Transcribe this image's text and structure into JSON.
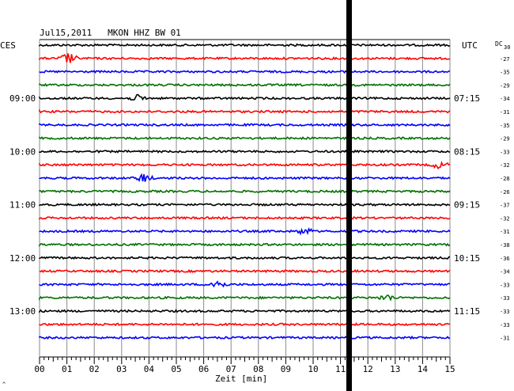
{
  "header": {
    "title": "Jul15,2011   MKON HHZ BW 01",
    "left_tz": "CES",
    "right_tz": "UTC",
    "dc_label_top": "DC",
    "dc_label_sub": "30"
  },
  "chart_data": {
    "type": "line",
    "title": "Jul15,2011   MKON HHZ BW 01",
    "xlabel": "Zeit [min]",
    "x_ticks": [
      "00",
      "01",
      "02",
      "03",
      "04",
      "05",
      "06",
      "07",
      "08",
      "09",
      "10",
      "11",
      "12",
      "13",
      "14",
      "15"
    ],
    "x_range": [
      0,
      15
    ],
    "grid": true,
    "trace_colors": [
      "#000000",
      "#ff0000",
      "#0000ff",
      "#007000"
    ],
    "left_time_labels": [
      "09:00",
      "10:00",
      "11:00",
      "12:00",
      "13:00"
    ],
    "right_time_labels": [
      "07:15",
      "08:15",
      "09:15",
      "10:15",
      "11:15"
    ],
    "dc_offsets": [
      "-27",
      "-35",
      "-29",
      "-34",
      "-31",
      "-35",
      "-29",
      "-33",
      "-32",
      "-28",
      "-26",
      "-37",
      "-32",
      "-31",
      "-38",
      "-36",
      "-34",
      "-33",
      "-33",
      "-33",
      "-33",
      "-31"
    ],
    "marker_minute": 11.3,
    "events": [
      {
        "trace": 1,
        "minute": 1.05,
        "size": 2.6
      },
      {
        "trace": 10,
        "minute": 3.8,
        "size": 2.0
      },
      {
        "trace": 14,
        "minute": 9.7,
        "size": 1.5
      },
      {
        "trace": 18,
        "minute": 6.5,
        "size": 2.2
      },
      {
        "trace": 19,
        "minute": 12.7,
        "size": 1.4
      },
      {
        "trace": 9,
        "minute": 14.6,
        "size": 1.5
      },
      {
        "trace": 4,
        "minute": 3.6,
        "size": 1.4
      }
    ]
  },
  "footer": {
    "corner_mark": "^"
  }
}
